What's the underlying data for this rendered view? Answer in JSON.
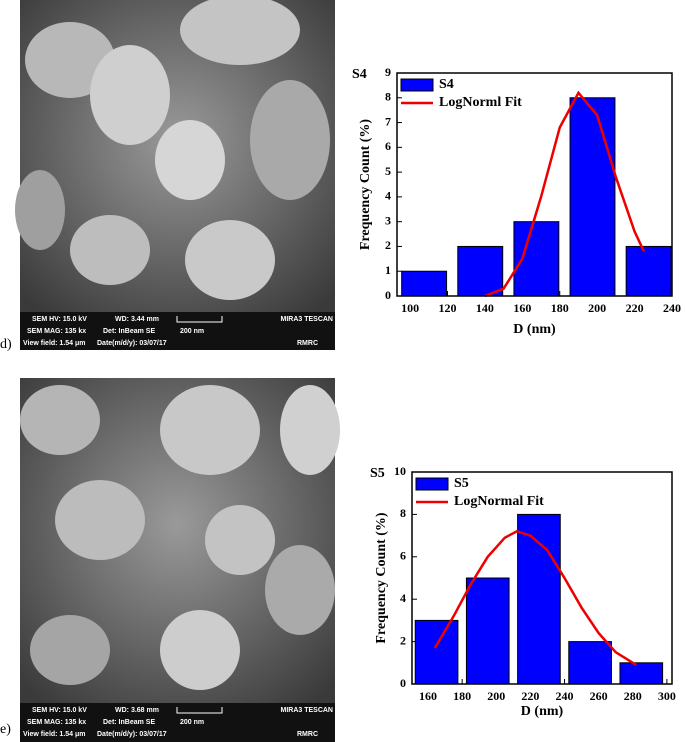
{
  "images": [
    {
      "label": "d)",
      "info": {
        "hv": "SEM HV: 15.0 kV",
        "wd": "WD: 3.44 mm",
        "brand": "MIRA3 TESCAN",
        "mag": "SEM MAG: 135 kx",
        "det": "Det: InBeam SE",
        "scale": "200 nm",
        "field": "View field: 1.54 μm",
        "date": "Date(m/d/y): 03/07/17",
        "lab": "RMRC"
      }
    },
    {
      "label": "e)",
      "info": {
        "hv": "SEM HV: 15.0 kV",
        "wd": "WD: 3.68 mm",
        "brand": "MIRA3 TESCAN",
        "mag": "SEM MAG: 135 kx",
        "det": "Det: InBeam SE",
        "scale": "200 nm",
        "field": "View field: 1.54 μm",
        "date": "Date(m/d/y): 03/07/17",
        "lab": "RMRC"
      }
    }
  ],
  "chart_data": [
    {
      "type": "bar",
      "title": "S4",
      "x_label": "D (nm)",
      "y_label": "Frequency Count (%)",
      "xlim": [
        93,
        240
      ],
      "xticks": [
        100,
        120,
        140,
        160,
        180,
        200,
        220,
        240
      ],
      "ylim": [
        0,
        9
      ],
      "yticks": [
        0,
        1,
        2,
        3,
        4,
        5,
        6,
        7,
        8,
        9
      ],
      "bar_width": 24,
      "series": [
        {
          "name": "S4",
          "type": "bar",
          "color": "#0000ff",
          "x": [
            107.5,
            137.5,
            167.5,
            197.5,
            227.5
          ],
          "values": [
            1,
            2,
            3,
            8,
            2
          ]
        },
        {
          "name": "LogNorml Fit",
          "type": "line",
          "color": "#ee0000",
          "x": [
            140,
            150,
            160,
            170,
            180,
            190,
            200,
            210,
            220,
            225
          ],
          "values": [
            0,
            0.3,
            1.5,
            4,
            6.8,
            8.2,
            7.3,
            4.8,
            2.6,
            1.8
          ]
        }
      ]
    },
    {
      "type": "bar",
      "title": "S5",
      "x_label": "D (nm)",
      "y_label": "Frequency Count (%)",
      "xlim": [
        150.6,
        303
      ],
      "xticks": [
        160,
        180,
        200,
        220,
        240,
        260,
        280,
        300
      ],
      "ylim": [
        0,
        10
      ],
      "yticks": [
        0,
        2,
        4,
        6,
        8,
        10
      ],
      "bar_width": 25,
      "series": [
        {
          "name": "S5",
          "type": "bar",
          "color": "#0000ff",
          "x": [
            165,
            195,
            225,
            255,
            285
          ],
          "values": [
            3,
            5,
            8,
            2,
            1
          ]
        },
        {
          "name": "LogNormal Fit",
          "type": "line",
          "color": "#ee0000",
          "x": [
            164,
            175,
            185,
            195,
            205,
            212,
            220,
            230,
            240,
            250,
            260,
            270,
            282
          ],
          "values": [
            1.7,
            3.2,
            4.7,
            6.0,
            6.9,
            7.2,
            7.0,
            6.3,
            5.0,
            3.6,
            2.4,
            1.5,
            0.9
          ]
        }
      ]
    }
  ]
}
